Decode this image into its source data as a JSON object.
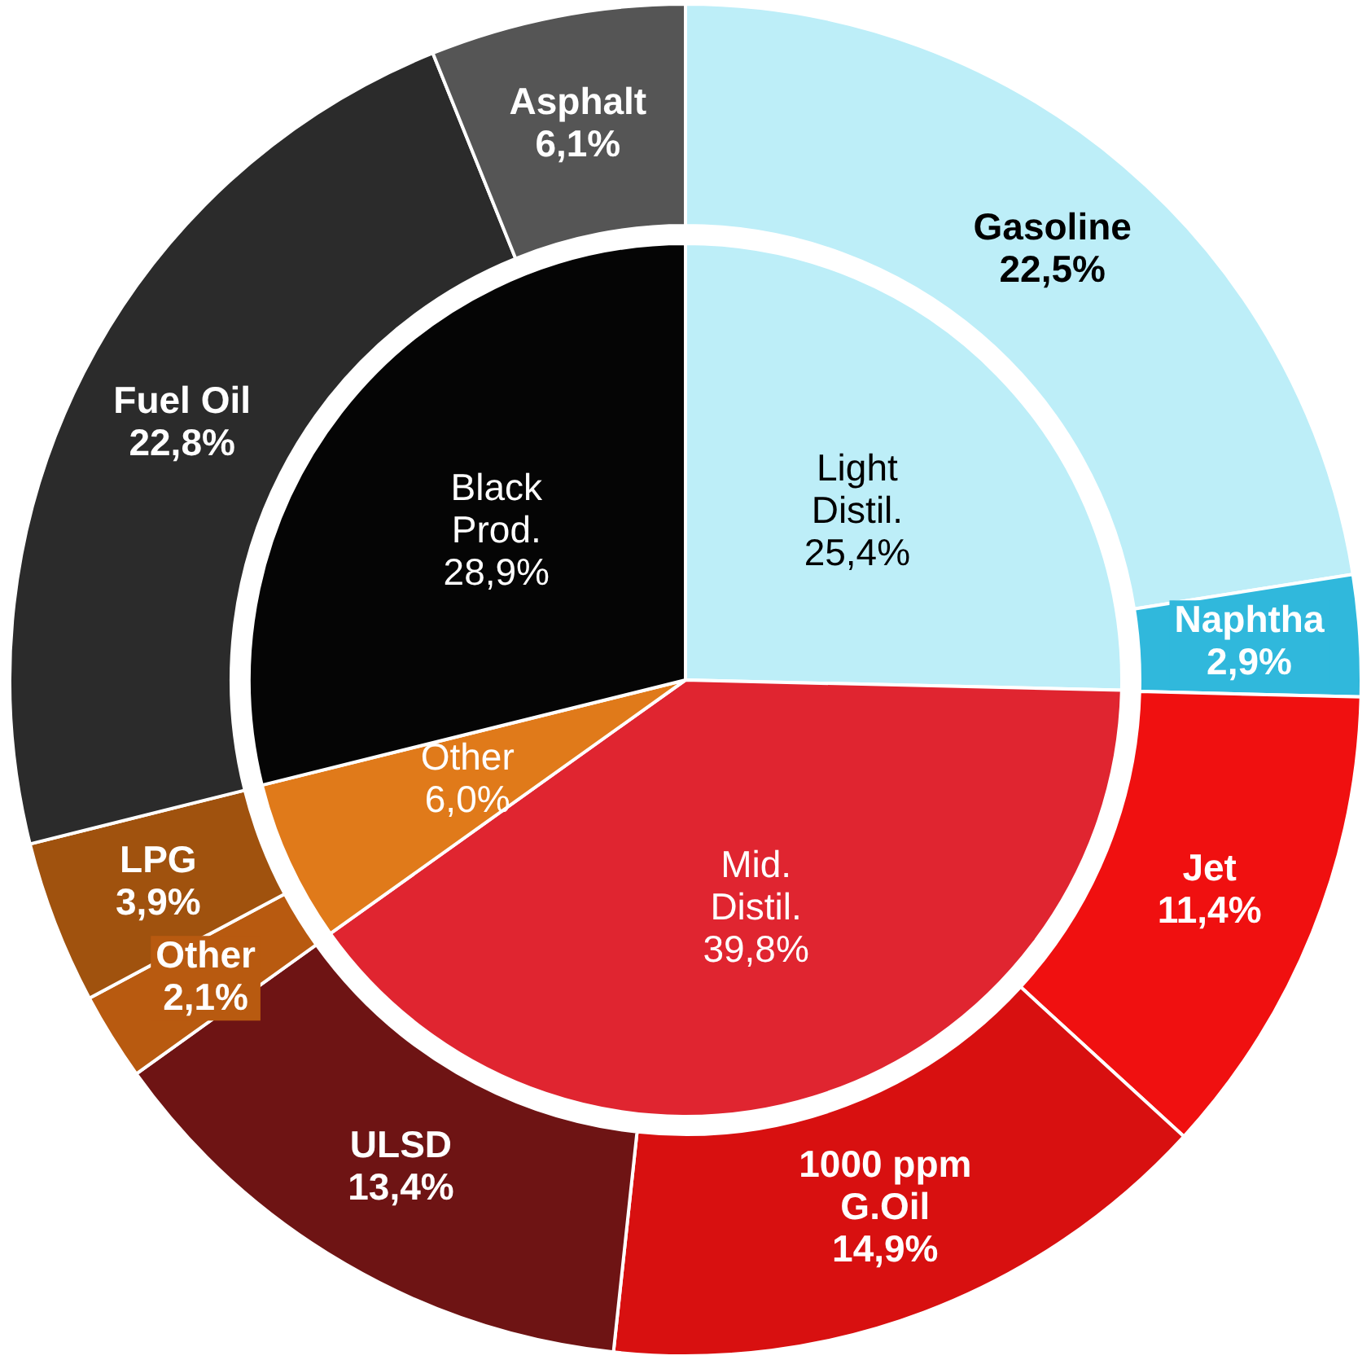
{
  "chart_data": [
    {
      "type": "pie",
      "categories": [
        "Light Distil.",
        "Mid. Distil.",
        "Other",
        "Black Prod."
      ],
      "values": [
        25.4,
        39.8,
        6.0,
        28.9
      ],
      "value_labels": [
        "25,4%",
        "39,8%",
        "6,0%",
        "28,9%"
      ],
      "colors": [
        "#bdeef8",
        "#e02530",
        "#e07a1a",
        "#050505"
      ]
    },
    {
      "type": "donut",
      "categories": [
        "Gasoline",
        "Naphtha",
        "Jet",
        "1000 ppm G.Oil",
        "ULSD",
        "Other",
        "LPG",
        "Fuel Oil",
        "Asphalt"
      ],
      "values": [
        22.5,
        2.9,
        11.4,
        14.9,
        13.4,
        2.1,
        3.9,
        22.8,
        6.1
      ],
      "value_labels": [
        "22,5%",
        "2,9%",
        "11,4%",
        "14,9%",
        "13,4%",
        "2,1%",
        "3,9%",
        "22,8%",
        "6,1%"
      ],
      "colors": [
        "#bdeef8",
        "#30b8dc",
        "#f01010",
        "#d81010",
        "#6e1414",
        "#b85a10",
        "#a0520e",
        "#2b2b2b",
        "#555555"
      ]
    }
  ]
}
